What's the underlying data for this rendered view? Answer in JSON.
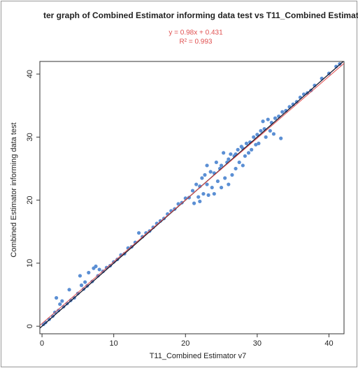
{
  "chart_data": {
    "type": "scatter",
    "title": "ter graph of Combined Estimator informing data test vs T11_Combined Estimatc",
    "annotations": [
      "y = 0.98x + 0.431",
      "R² = 0.993"
    ],
    "x_label": "T11_Combined Estimator v7",
    "y_label": "Combined Estimator informing data test",
    "color": "#5b8fd4",
    "fit_line": {
      "slope": 0.98,
      "intercept": 0.431,
      "color": "#e05050"
    },
    "identity_line": {
      "color": "#1a1a2e"
    },
    "xlim": [
      -0.3,
      42.1
    ],
    "ylim": [
      -1.2,
      42
    ],
    "xticks": [
      0,
      10,
      20,
      30,
      40
    ],
    "yticks": [
      0,
      10,
      20,
      30,
      40
    ],
    "x": [
      0.2,
      0.5,
      1,
      1.5,
      1.8,
      2,
      2.3,
      2.5,
      2.8,
      3,
      3.5,
      3.8,
      4,
      4.5,
      5,
      5.3,
      5.5,
      5.8,
      6,
      6.3,
      6.5,
      7,
      7.2,
      7.5,
      7.8,
      8,
      8.5,
      9,
      9.5,
      10,
      10.5,
      11,
      11.5,
      12,
      12.5,
      13,
      13.5,
      14,
      14.5,
      15,
      15.5,
      16,
      16.5,
      17,
      17.5,
      18,
      18.5,
      19,
      19.5,
      20,
      20.5,
      21,
      21.2,
      21.5,
      21.8,
      22,
      22,
      22.3,
      22.5,
      22.7,
      23,
      23,
      23.2,
      23.5,
      23.7,
      24,
      24,
      24.3,
      24.5,
      24.8,
      25,
      25,
      25.3,
      25.5,
      25.8,
      26,
      26,
      26.3,
      26.5,
      26.8,
      27,
      27,
      27.3,
      27.5,
      27.8,
      28,
      28,
      28.3,
      28.5,
      28.8,
      29,
      29.2,
      29.5,
      29.8,
      30,
      30.2,
      30.5,
      30.8,
      31,
      31.2,
      31.5,
      31.8,
      32,
      32.3,
      32.5,
      33,
      33.3,
      33.5,
      34,
      34.5,
      35,
      35.5,
      36,
      36.5,
      37,
      37.5,
      38,
      39,
      40,
      41,
      41.5
    ],
    "values": [
      0.3,
      0.6,
      1.1,
      1.6,
      2.2,
      4.5,
      2.5,
      3.5,
      4,
      3.1,
      3.6,
      5.8,
      4.1,
      4.5,
      5.2,
      8,
      6.5,
      5.9,
      7,
      6.4,
      8.5,
      7.1,
      9.2,
      9.5,
      8,
      9,
      8.7,
      9.3,
      9.6,
      10.2,
      10.6,
      11.3,
      11.5,
      12.4,
      12.6,
      13.3,
      14.8,
      14.2,
      14.8,
      15.1,
      15.7,
      16.3,
      16.7,
      17.1,
      17.8,
      18.3,
      18.6,
      19.4,
      19.6,
      20.3,
      20.4,
      21.5,
      19.5,
      22.5,
      20.5,
      22.2,
      19.8,
      23.5,
      21,
      24,
      22.5,
      25.5,
      20.8,
      24.5,
      22,
      24.3,
      21,
      26,
      23,
      25,
      25.5,
      22,
      27.5,
      23.5,
      26,
      26.5,
      22.5,
      27.3,
      24,
      27,
      27.3,
      25,
      28,
      26,
      28.5,
      28.2,
      25.5,
      27,
      29,
      27.5,
      29.2,
      28,
      30,
      28.8,
      30.4,
      29,
      31,
      32.5,
      31.3,
      30,
      32.8,
      31,
      32.3,
      30.5,
      33,
      33.3,
      29.8,
      34,
      34.2,
      34.8,
      35.2,
      35.6,
      36.3,
      36.8,
      37,
      37.4,
      38.2,
      39.3,
      40.1,
      41.2,
      41.6
    ]
  }
}
